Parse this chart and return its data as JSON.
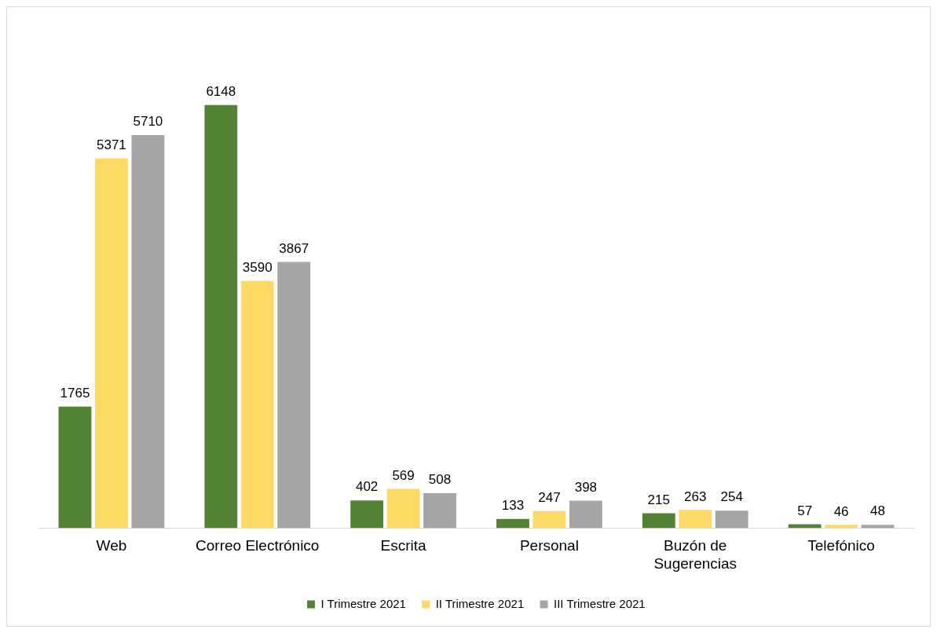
{
  "chart_data": {
    "type": "bar",
    "categories": [
      "Web",
      "Correo Electrónico",
      "Escrita",
      "Personal",
      "Buzón de\nSugerencias",
      "Telefónico"
    ],
    "series": [
      {
        "name": "I Trimestre 2021",
        "color": "#548235",
        "values": [
          1765,
          6148,
          402,
          133,
          215,
          57
        ]
      },
      {
        "name": "II Trimestre 2021",
        "color": "#ffd966",
        "values": [
          5371,
          3590,
          569,
          247,
          263,
          46
        ]
      },
      {
        "name": "III Trimestre 2021",
        "color": "#a5a5a5",
        "values": [
          5710,
          3867,
          508,
          398,
          254,
          48
        ]
      }
    ],
    "data_labels": true,
    "legend": "bottom",
    "grid": false
  }
}
